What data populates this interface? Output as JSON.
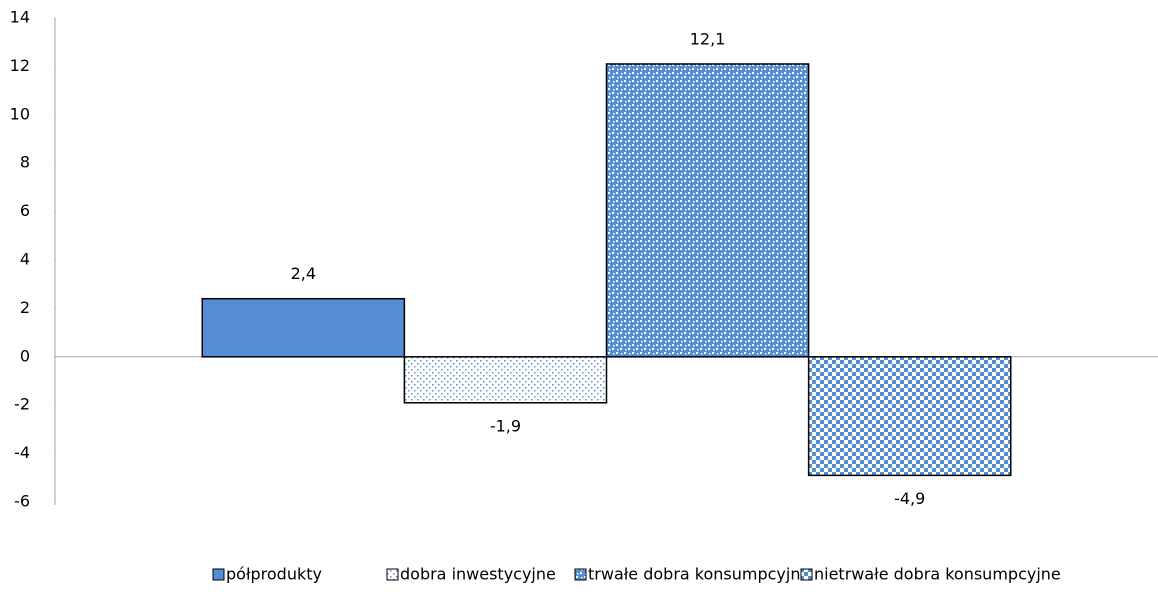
{
  "chart_data": {
    "type": "bar",
    "categories": [
      null
    ],
    "series": [
      {
        "name": "półprodukty",
        "color": "#558ed5",
        "pattern": "solid",
        "values": [
          2.4
        ],
        "value_labels": [
          "2,4"
        ]
      },
      {
        "name": "dobra inwestycyjne",
        "color": "#558ed5",
        "pattern": "dots",
        "values": [
          -1.9
        ],
        "value_labels": [
          "-1,9"
        ]
      },
      {
        "name": "trwałe dobra konsumpcyjne",
        "color": "#558ed5",
        "pattern": "confetti",
        "values": [
          12.1
        ],
        "value_labels": [
          "12,1"
        ]
      },
      {
        "name": "nietrwałe dobra konsumpcyjne",
        "color": "#558ed5",
        "pattern": "checker",
        "values": [
          -4.9
        ],
        "value_labels": [
          "-4,9"
        ]
      }
    ],
    "ylim": [
      -6,
      14
    ],
    "yticks": [
      -6,
      -4,
      -2,
      0,
      2,
      4,
      6,
      8,
      10,
      12,
      14
    ],
    "grid": false,
    "legend": "bottom"
  }
}
